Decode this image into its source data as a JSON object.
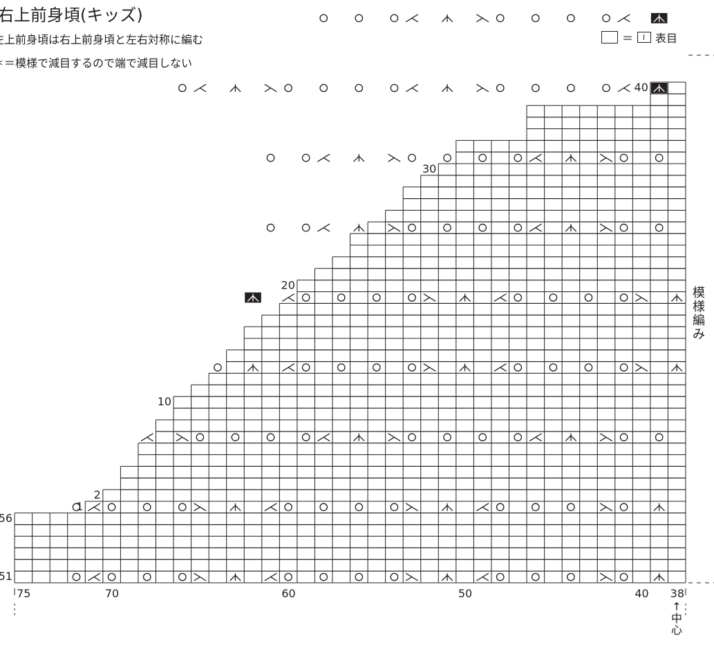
{
  "title": "右上前身頃(キッズ)",
  "notes": [
    "左上前身頃は右上前身頃と左右対称に編む",
    "＊＝模様で減目するので端で減目しない"
  ],
  "legend": {
    "eq": "＝",
    "label": "表目"
  },
  "pattern_label": "模様編み",
  "center_label": [
    "↑",
    "中",
    "心"
  ],
  "chart_data": {
    "type": "table",
    "columns_from": 75,
    "columns_to": 38,
    "column_tick_labels": [
      "75",
      "70",
      "60",
      "50",
      "40",
      "38"
    ],
    "lower_block_row_labels": [
      "56",
      "51"
    ],
    "upper_row_labels": [
      "1",
      "2",
      "10",
      "20",
      "30",
      "40"
    ],
    "row_widths": [
      38,
      38,
      38,
      38,
      38,
      38,
      34,
      33,
      32,
      32,
      31,
      31,
      30,
      30,
      29,
      29,
      28,
      27,
      26,
      26,
      25,
      25,
      24,
      23,
      22,
      22,
      21,
      20,
      19,
      19,
      18,
      17,
      16,
      16,
      15,
      14,
      13,
      13,
      9,
      9,
      9,
      2,
      2
    ],
    "symbols": {
      "o": "かけ目",
      "l": "左上2目一度",
      "r": "右上2目一度",
      "c": "中上3目一度",
      "c*": "中上3目一度(＊)"
    },
    "marked_rows": [
      {
        "row": 1,
        "cells": [
          [
            39,
            "c"
          ],
          [
            41,
            "o"
          ],
          [
            42,
            "r"
          ],
          [
            44,
            "o"
          ],
          [
            46,
            "o"
          ],
          [
            48,
            "o"
          ],
          [
            49,
            "l"
          ],
          [
            51,
            "c"
          ],
          [
            53,
            "r"
          ],
          [
            54,
            "o"
          ],
          [
            56,
            "o"
          ],
          [
            58,
            "o"
          ],
          [
            60,
            "o"
          ],
          [
            61,
            "l"
          ],
          [
            63,
            "c"
          ],
          [
            65,
            "r"
          ],
          [
            66,
            "o"
          ],
          [
            68,
            "o"
          ],
          [
            70,
            "o"
          ],
          [
            71,
            "l"
          ],
          [
            72,
            "o"
          ]
        ]
      },
      {
        "row": 7,
        "cells": [
          [
            39,
            "c"
          ],
          [
            41,
            "o"
          ],
          [
            42,
            "r"
          ],
          [
            44,
            "o"
          ],
          [
            46,
            "o"
          ],
          [
            48,
            "o"
          ],
          [
            49,
            "l"
          ],
          [
            51,
            "c"
          ],
          [
            53,
            "r"
          ],
          [
            54,
            "o"
          ],
          [
            56,
            "o"
          ],
          [
            58,
            "o"
          ],
          [
            60,
            "o"
          ],
          [
            61,
            "l"
          ],
          [
            63,
            "c"
          ],
          [
            65,
            "r"
          ],
          [
            66,
            "o"
          ],
          [
            68,
            "o"
          ],
          [
            70,
            "o"
          ],
          [
            71,
            "l"
          ],
          [
            72,
            "o"
          ]
        ]
      },
      {
        "row": 13,
        "cells": [
          [
            39,
            "o"
          ],
          [
            41,
            "o"
          ],
          [
            42,
            "r"
          ],
          [
            44,
            "c"
          ],
          [
            46,
            "l"
          ],
          [
            47,
            "o"
          ],
          [
            49,
            "o"
          ],
          [
            51,
            "o"
          ],
          [
            53,
            "o"
          ],
          [
            54,
            "r"
          ],
          [
            56,
            "c"
          ],
          [
            58,
            "l"
          ],
          [
            59,
            "o"
          ],
          [
            61,
            "o"
          ],
          [
            63,
            "o"
          ],
          [
            65,
            "o"
          ],
          [
            66,
            "r"
          ],
          [
            68,
            "l"
          ]
        ]
      },
      {
        "row": 19,
        "cells": [
          [
            38,
            "c"
          ],
          [
            40,
            "r"
          ],
          [
            41,
            "o"
          ],
          [
            43,
            "o"
          ],
          [
            45,
            "o"
          ],
          [
            47,
            "o"
          ],
          [
            48,
            "l"
          ],
          [
            50,
            "c"
          ],
          [
            52,
            "r"
          ],
          [
            53,
            "o"
          ],
          [
            55,
            "o"
          ],
          [
            57,
            "o"
          ],
          [
            59,
            "o"
          ],
          [
            60,
            "l"
          ],
          [
            62,
            "c"
          ],
          [
            64,
            "o"
          ]
        ]
      },
      {
        "row": 25,
        "cells": [
          [
            38,
            "c"
          ],
          [
            40,
            "r"
          ],
          [
            41,
            "o"
          ],
          [
            43,
            "o"
          ],
          [
            45,
            "o"
          ],
          [
            47,
            "o"
          ],
          [
            48,
            "l"
          ],
          [
            50,
            "c"
          ],
          [
            52,
            "r"
          ],
          [
            53,
            "o"
          ],
          [
            55,
            "o"
          ],
          [
            57,
            "o"
          ],
          [
            59,
            "o"
          ],
          [
            60,
            "l"
          ],
          [
            62,
            "c*"
          ]
        ]
      },
      {
        "row": 31,
        "cells": [
          [
            39,
            "o"
          ],
          [
            41,
            "o"
          ],
          [
            42,
            "r"
          ],
          [
            44,
            "c"
          ],
          [
            46,
            "l"
          ],
          [
            47,
            "o"
          ],
          [
            49,
            "o"
          ],
          [
            51,
            "o"
          ],
          [
            53,
            "o"
          ],
          [
            54,
            "r"
          ],
          [
            56,
            "c"
          ],
          [
            58,
            "l"
          ],
          [
            59,
            "o"
          ],
          [
            61,
            "o"
          ]
        ]
      },
      {
        "row": 37,
        "cells": [
          [
            39,
            "o"
          ],
          [
            41,
            "o"
          ],
          [
            42,
            "r"
          ],
          [
            44,
            "c"
          ],
          [
            46,
            "l"
          ],
          [
            47,
            "o"
          ],
          [
            49,
            "o"
          ],
          [
            51,
            "o"
          ],
          [
            53,
            "o"
          ],
          [
            54,
            "r"
          ],
          [
            56,
            "c"
          ],
          [
            58,
            "l"
          ],
          [
            59,
            "o"
          ],
          [
            61,
            "o"
          ]
        ]
      },
      {
        "row": 43,
        "cells": [
          [
            39,
            "c*"
          ],
          [
            41,
            "l"
          ],
          [
            42,
            "o"
          ],
          [
            44,
            "o"
          ],
          [
            46,
            "o"
          ],
          [
            48,
            "o"
          ],
          [
            49,
            "r"
          ],
          [
            51,
            "c"
          ],
          [
            53,
            "l"
          ],
          [
            54,
            "o"
          ],
          [
            56,
            "o"
          ],
          [
            58,
            "o"
          ],
          [
            60,
            "o"
          ],
          [
            61,
            "r"
          ],
          [
            63,
            "c"
          ],
          [
            65,
            "l"
          ],
          [
            66,
            "o"
          ]
        ]
      },
      {
        "row": 49,
        "cells": [
          [
            39,
            "c*"
          ],
          [
            41,
            "l"
          ],
          [
            42,
            "o"
          ],
          [
            44,
            "o"
          ],
          [
            46,
            "o"
          ],
          [
            48,
            "o"
          ],
          [
            49,
            "r"
          ],
          [
            51,
            "c"
          ],
          [
            53,
            "l"
          ],
          [
            54,
            "o"
          ],
          [
            56,
            "o"
          ],
          [
            58,
            "o"
          ]
        ]
      },
      {
        "row": 55,
        "cells": [
          [
            38,
            "c"
          ],
          [
            40,
            "r"
          ],
          [
            41,
            "o"
          ],
          [
            43,
            "o"
          ],
          [
            45,
            "o"
          ],
          [
            47,
            "o"
          ],
          [
            48,
            "l"
          ],
          [
            50,
            "c"
          ]
        ]
      },
      {
        "row": 61,
        "cells": [
          [
            38,
            "c"
          ],
          [
            40,
            "r"
          ],
          [
            41,
            "o"
          ],
          [
            43,
            "o"
          ],
          [
            45,
            "o"
          ],
          [
            47,
            "o"
          ],
          [
            48,
            "l"
          ],
          [
            50,
            "c"
          ],
          [
            52,
            "r"
          ],
          [
            53,
            "o"
          ],
          [
            55,
            "o"
          ]
        ]
      }
    ]
  }
}
